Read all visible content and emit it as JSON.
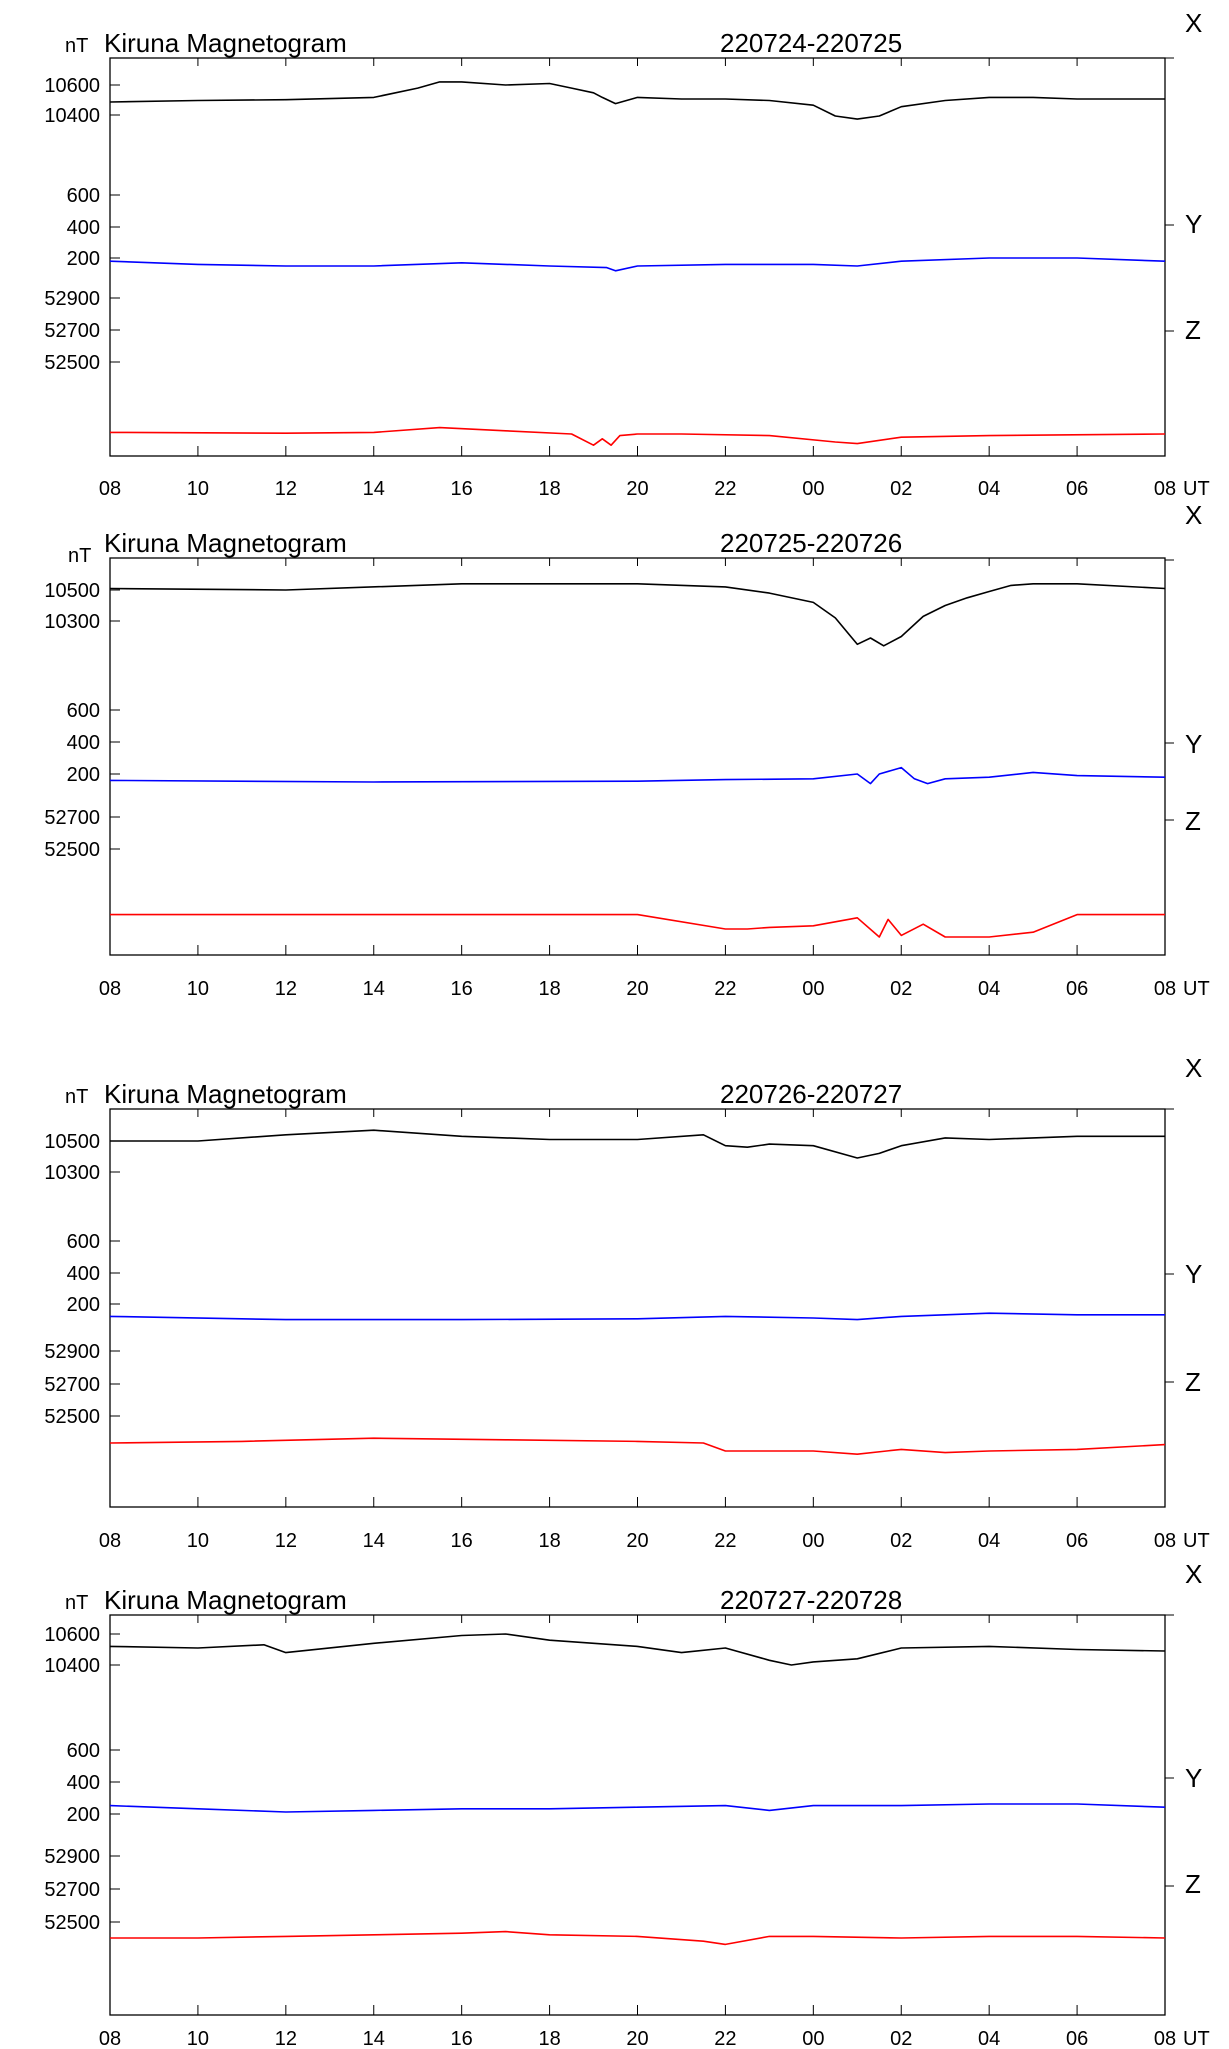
{
  "colors": {
    "X": "#000000",
    "Y": "#0000ff",
    "Z": "#ff0000",
    "axis": "#000000"
  },
  "chart_data": [
    {
      "type": "line",
      "title": "Kiruna Magnetogram",
      "date_range": "220724-220725",
      "unit_label": "nT",
      "time_unit_label": "UT",
      "x_tick_labels": [
        "08",
        "10",
        "12",
        "14",
        "16",
        "18",
        "20",
        "22",
        "00",
        "02",
        "04",
        "06",
        "08"
      ],
      "component_labels": [
        "X",
        "Y",
        "Z"
      ],
      "y_tick_labels": [
        "10600",
        "10400",
        "600",
        "400",
        "200",
        "52900",
        "52700",
        "52500"
      ],
      "series": [
        {
          "name": "X",
          "x": [
            0,
            2,
            4,
            6,
            7,
            7.5,
            8,
            9,
            10,
            10.5,
            11,
            11.2,
            11.5,
            12,
            13,
            14,
            15,
            16,
            16.5,
            17,
            17.5,
            18,
            19,
            20,
            21,
            22,
            23,
            24
          ],
          "y": [
            10490,
            10500,
            10505,
            10520,
            10580,
            10620,
            10620,
            10600,
            10610,
            10580,
            10550,
            10520,
            10480,
            10520,
            10510,
            10510,
            10500,
            10470,
            10400,
            10380,
            10400,
            10460,
            10500,
            10520,
            10520,
            10510,
            10510,
            10510
          ]
        },
        {
          "name": "Y",
          "x": [
            0,
            2,
            4,
            6,
            8,
            10,
            11.3,
            11.5,
            12,
            14,
            16,
            17,
            18,
            20,
            22,
            24
          ],
          "y": [
            180,
            160,
            150,
            150,
            170,
            150,
            140,
            120,
            150,
            160,
            160,
            150,
            180,
            200,
            200,
            180
          ]
        },
        {
          "name": "Z",
          "x": [
            0,
            4,
            6,
            7.5,
            9,
            10.5,
            11,
            11.2,
            11.4,
            11.6,
            12,
            13,
            15,
            16.5,
            17,
            18,
            20,
            24
          ],
          "y": [
            52060,
            52055,
            52060,
            52090,
            52070,
            52050,
            51980,
            52020,
            51980,
            52040,
            52050,
            52050,
            52040,
            52000,
            51990,
            52030,
            52040,
            52050
          ]
        }
      ]
    },
    {
      "type": "line",
      "title": "Kiruna Magnetogram",
      "date_range": "220725-220726",
      "unit_label": "nT",
      "time_unit_label": "UT",
      "x_tick_labels": [
        "08",
        "10",
        "12",
        "14",
        "16",
        "18",
        "20",
        "22",
        "00",
        "02",
        "04",
        "06",
        "08"
      ],
      "component_labels": [
        "X",
        "Y",
        "Z"
      ],
      "y_tick_labels": [
        "10500",
        "10300",
        "600",
        "400",
        "200",
        "52700",
        "52500"
      ],
      "series": [
        {
          "name": "X",
          "x": [
            0,
            4,
            8,
            12,
            14,
            15,
            16,
            16.5,
            17,
            17.3,
            17.6,
            18,
            18.5,
            19,
            19.5,
            20,
            20.5,
            21,
            22,
            24
          ],
          "y": [
            10510,
            10500,
            10540,
            10540,
            10520,
            10480,
            10420,
            10320,
            10150,
            10190,
            10140,
            10200,
            10330,
            10400,
            10450,
            10490,
            10530,
            10540,
            10540,
            10510
          ]
        },
        {
          "name": "Y",
          "x": [
            0,
            6,
            12,
            14,
            16,
            17,
            17.3,
            17.5,
            18,
            18.3,
            18.6,
            19,
            20,
            21,
            22,
            24
          ],
          "y": [
            160,
            150,
            155,
            165,
            170,
            200,
            140,
            200,
            240,
            170,
            140,
            170,
            180,
            210,
            190,
            180
          ]
        },
        {
          "name": "Z",
          "x": [
            0,
            6,
            10,
            12,
            14,
            14.5,
            15,
            16,
            17,
            17.5,
            17.7,
            18,
            18.5,
            19,
            20,
            21,
            22,
            24
          ],
          "y": [
            52090,
            52090,
            52090,
            52090,
            52000,
            52000,
            52010,
            52020,
            52070,
            51950,
            52060,
            51960,
            52030,
            51950,
            51950,
            51980,
            52090,
            52090
          ]
        }
      ]
    },
    {
      "type": "line",
      "title": "Kiruna Magnetogram",
      "date_range": "220726-220727",
      "unit_label": "nT",
      "time_unit_label": "UT",
      "x_tick_labels": [
        "08",
        "10",
        "12",
        "14",
        "16",
        "18",
        "20",
        "22",
        "00",
        "02",
        "04",
        "06",
        "08"
      ],
      "component_labels": [
        "X",
        "Y",
        "Z"
      ],
      "y_tick_labels": [
        "10500",
        "10300",
        "600",
        "400",
        "200",
        "52900",
        "52700",
        "52500"
      ],
      "series": [
        {
          "name": "X",
          "x": [
            0,
            2,
            4,
            6,
            8,
            10,
            12,
            13.5,
            14,
            14.5,
            15,
            16,
            17,
            17.5,
            18,
            19,
            20,
            22,
            24
          ],
          "y": [
            10500,
            10500,
            10540,
            10570,
            10530,
            10510,
            10510,
            10540,
            10470,
            10460,
            10480,
            10470,
            10390,
            10420,
            10470,
            10520,
            10510,
            10530,
            10530
          ]
        },
        {
          "name": "Y",
          "x": [
            0,
            4,
            8,
            12,
            14,
            16,
            17,
            18,
            20,
            22,
            24
          ],
          "y": [
            160,
            140,
            140,
            145,
            160,
            150,
            140,
            160,
            180,
            170,
            170
          ]
        },
        {
          "name": "Z",
          "x": [
            0,
            3,
            6,
            9,
            12,
            13.5,
            14,
            16,
            17,
            18,
            19,
            20,
            22,
            24
          ],
          "y": [
            52100,
            52110,
            52130,
            52120,
            52110,
            52100,
            52050,
            52050,
            52030,
            52060,
            52040,
            52050,
            52060,
            52090
          ]
        }
      ]
    },
    {
      "type": "line",
      "title": "Kiruna Magnetogram",
      "date_range": "220727-220728",
      "unit_label": "nT",
      "time_unit_label": "UT",
      "x_tick_labels": [
        "08",
        "10",
        "12",
        "14",
        "16",
        "18",
        "20",
        "22",
        "00",
        "02",
        "04",
        "06",
        "08"
      ],
      "component_labels": [
        "X",
        "Y",
        "Z"
      ],
      "y_tick_labels": [
        "10600",
        "10400",
        "600",
        "400",
        "200",
        "52900",
        "52700",
        "52500"
      ],
      "series": [
        {
          "name": "X",
          "x": [
            0,
            2,
            3.5,
            4,
            6,
            8,
            9,
            10,
            12,
            13,
            14,
            15,
            15.5,
            16,
            17,
            18,
            20,
            22,
            24
          ],
          "y": [
            10520,
            10510,
            10530,
            10480,
            10540,
            10590,
            10600,
            10560,
            10520,
            10480,
            10510,
            10430,
            10400,
            10420,
            10440,
            10510,
            10520,
            10500,
            10490
          ]
        },
        {
          "name": "Y",
          "x": [
            0,
            2,
            4,
            6,
            8,
            10,
            12,
            14,
            15,
            16,
            18,
            20,
            22,
            24
          ],
          "y": [
            190,
            170,
            150,
            160,
            170,
            170,
            180,
            190,
            160,
            190,
            190,
            200,
            200,
            180
          ]
        },
        {
          "name": "Z",
          "x": [
            0,
            2,
            4,
            6,
            8,
            9,
            10,
            12,
            13.5,
            14,
            15,
            16,
            18,
            20,
            22,
            24
          ],
          "y": [
            52100,
            52100,
            52110,
            52120,
            52130,
            52140,
            52120,
            52110,
            52080,
            52060,
            52110,
            52110,
            52100,
            52110,
            52110,
            52100
          ]
        }
      ]
    }
  ]
}
